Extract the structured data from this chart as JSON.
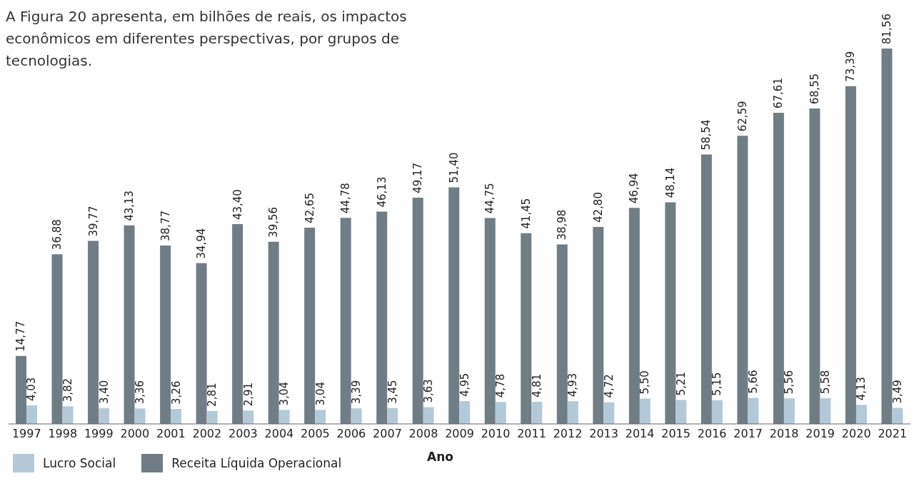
{
  "chart_data": {
    "type": "bar",
    "title": "A Figura 20 apresenta, em bilhões de reais, os impactos econômicos em diferentes perspectivas, por grupos de tecnologias.",
    "xlabel": "Ano",
    "categories": [
      "1997",
      "1998",
      "1999",
      "2000",
      "2001",
      "2002",
      "2003",
      "2004",
      "2005",
      "2006",
      "2007",
      "2008",
      "2009",
      "2010",
      "2011",
      "2012",
      "2013",
      "2014",
      "2015",
      "2016",
      "2017",
      "2018",
      "2019",
      "2020",
      "2021"
    ],
    "series": [
      {
        "name": "Receita Líquida Operacional",
        "color": "#717d85",
        "values": [
          14.77,
          36.88,
          39.77,
          43.13,
          38.77,
          34.94,
          43.4,
          39.56,
          42.65,
          44.78,
          46.13,
          49.17,
          51.4,
          44.75,
          41.45,
          38.98,
          42.8,
          46.94,
          48.14,
          58.54,
          62.59,
          67.61,
          68.55,
          73.39,
          81.56
        ],
        "value_labels": [
          "14,77",
          "36,88",
          "39,77",
          "43,13",
          "38,77",
          "34,94",
          "43,40",
          "39,56",
          "42,65",
          "44,78",
          "46,13",
          "49,17",
          "51,40",
          "44,75",
          "41,45",
          "38,98",
          "42,80",
          "46,94",
          "48,14",
          "58,54",
          "62,59",
          "67,61",
          "68,55",
          "73,39",
          "81,56"
        ]
      },
      {
        "name": "Lucro Social",
        "color": "#b3c9d7",
        "values": [
          4.03,
          3.82,
          3.4,
          3.36,
          3.26,
          2.81,
          2.91,
          3.04,
          3.04,
          3.39,
          3.45,
          3.63,
          4.95,
          4.78,
          4.81,
          4.93,
          4.72,
          5.5,
          5.21,
          5.15,
          5.66,
          5.56,
          5.58,
          4.13,
          3.49
        ],
        "value_labels": [
          "4,03",
          "3,82",
          "3,40",
          "3,36",
          "3,26",
          "2,81",
          "2,91",
          "3,04",
          "3,04",
          "3,39",
          "3,45",
          "3,63",
          "4,95",
          "4,78",
          "4,81",
          "4,93",
          "4,72",
          "5,50",
          "5,21",
          "5,15",
          "5,66",
          "5,56",
          "5,58",
          "4,13",
          "3,49"
        ]
      }
    ],
    "legend": "bottom left",
    "grid": false
  }
}
